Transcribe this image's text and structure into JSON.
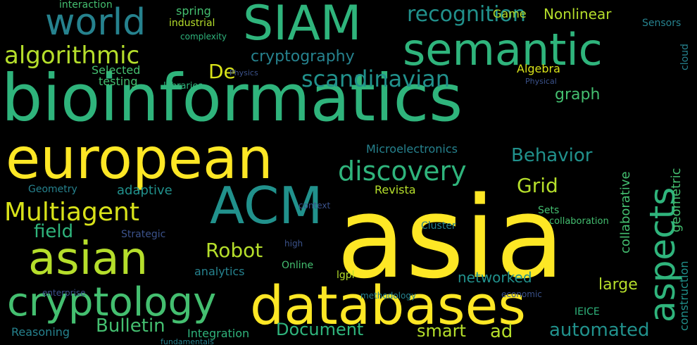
{
  "palette": {
    "background": "#000000",
    "yellow": "#fde725",
    "green": "#5ec962",
    "teal": "#21918c",
    "blue": "#3b528b",
    "purple": "#440154",
    "lightgreen": "#addc30",
    "aqua": "#28ae80"
  },
  "words": [
    {
      "text": "bioinformatics",
      "color": "#2fb47c"
    },
    {
      "text": "asia",
      "color": "#fde725"
    },
    {
      "text": "european",
      "color": "#fde725"
    },
    {
      "text": "databases",
      "color": "#fde725"
    },
    {
      "text": "SIAM",
      "color": "#2fb47c"
    },
    {
      "text": "semantic",
      "color": "#2fb47c"
    },
    {
      "text": "ACM",
      "color": "#21918c"
    },
    {
      "text": "asian",
      "color": "#b5de2b"
    },
    {
      "text": "cryptology",
      "color": "#44bf70"
    },
    {
      "text": "world",
      "color": "#26828e"
    },
    {
      "text": "aspects",
      "color": "#2fb47c"
    },
    {
      "text": "recognition",
      "color": "#21918c"
    },
    {
      "text": "algorithmic",
      "color": "#b5de2b"
    },
    {
      "text": "discovery",
      "color": "#2fb47c"
    },
    {
      "text": "Multiagent",
      "color": "#d8e219"
    },
    {
      "text": "scandinavian",
      "color": "#21918c"
    },
    {
      "text": "Behavior",
      "color": "#21918c"
    },
    {
      "text": "Bulletin",
      "color": "#44bf70"
    },
    {
      "text": "automated",
      "color": "#21918c"
    },
    {
      "text": "Robot",
      "color": "#b5de2b"
    },
    {
      "text": "Document",
      "color": "#2fb47c"
    },
    {
      "text": "Nonlinear",
      "color": "#b5de2b"
    },
    {
      "text": "cryptography",
      "color": "#26828e"
    },
    {
      "text": "Grid",
      "color": "#b5de2b"
    },
    {
      "text": "graph",
      "color": "#44bf70"
    },
    {
      "text": "De",
      "color": "#d8e219"
    },
    {
      "text": "field",
      "color": "#2fb47c"
    },
    {
      "text": "adaptive",
      "color": "#21918c"
    },
    {
      "text": "smart",
      "color": "#b5de2b"
    },
    {
      "text": "ad",
      "color": "#b5de2b"
    },
    {
      "text": "networked",
      "color": "#21918c"
    },
    {
      "text": "large",
      "color": "#b5de2b"
    },
    {
      "text": "Reasoning",
      "color": "#26828e"
    },
    {
      "text": "Integration",
      "color": "#2fb47c"
    },
    {
      "text": "analytics",
      "color": "#26828e"
    },
    {
      "text": "Microelectronics",
      "color": "#26828e"
    },
    {
      "text": "Selected",
      "color": "#44bf70"
    },
    {
      "text": "testing",
      "color": "#44bf70"
    },
    {
      "text": "industrial",
      "color": "#b5de2b"
    },
    {
      "text": "spring",
      "color": "#44bf70"
    },
    {
      "text": "Game",
      "color": "#b5de2b"
    },
    {
      "text": "interaction",
      "color": "#44bf70"
    },
    {
      "text": "Algebra",
      "color": "#d8e219"
    },
    {
      "text": "Revista",
      "color": "#b5de2b"
    },
    {
      "text": "Geometry",
      "color": "#26828e"
    },
    {
      "text": "Strategic",
      "color": "#3b528b"
    },
    {
      "text": "Online",
      "color": "#44bf70"
    },
    {
      "text": "Sets",
      "color": "#44bf70"
    },
    {
      "text": "Cluster",
      "color": "#26828e"
    },
    {
      "text": "Libraries",
      "color": "#2fb47c"
    },
    {
      "text": "IEICE",
      "color": "#2fb47c"
    },
    {
      "text": "lgpl",
      "color": "#b5de2b"
    },
    {
      "text": "high",
      "color": "#3b528b"
    },
    {
      "text": "context",
      "color": "#3b528b"
    },
    {
      "text": "complexity",
      "color": "#2fb47c"
    },
    {
      "text": "Sensors",
      "color": "#26828e"
    },
    {
      "text": "fundamentals",
      "color": "#26828e"
    },
    {
      "text": "enterprise",
      "color": "#3b528b"
    },
    {
      "text": "methodology",
      "color": "#26828e"
    },
    {
      "text": "economic",
      "color": "#3b528b"
    },
    {
      "text": "collaboration",
      "color": "#44bf70"
    },
    {
      "text": "collaborative",
      "color": "#44bf70"
    },
    {
      "text": "geometric",
      "color": "#44bf70"
    },
    {
      "text": "construction",
      "color": "#21918c"
    },
    {
      "text": "cloud",
      "color": "#26828e"
    },
    {
      "text": "Physics",
      "color": "#3b528b"
    },
    {
      "text": "Physical",
      "color": "#3b528b"
    }
  ]
}
